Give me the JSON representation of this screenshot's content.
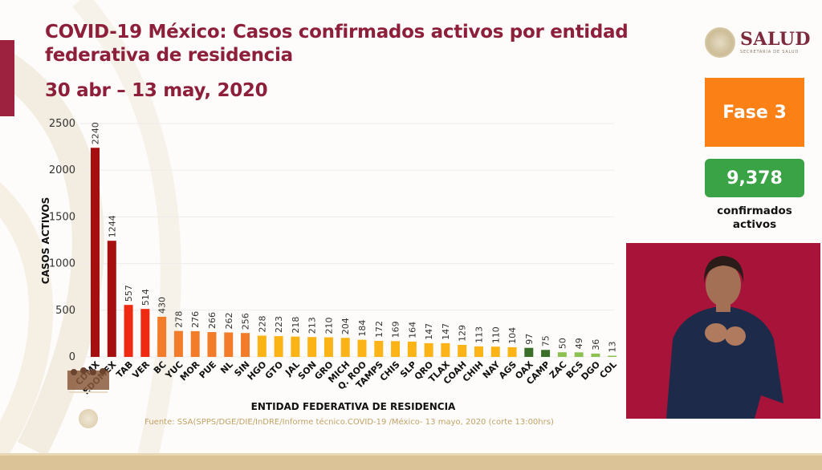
{
  "header": {
    "title": "COVID-19 México: Casos confirmados activos por entidad federativa de residencia",
    "date_range": "30 abr – 13 may, 2020"
  },
  "logo": {
    "name": "SALUD",
    "subtitle": "SECRETARÍA DE SALUD"
  },
  "sidebar": {
    "phase_label": "Fase 3",
    "phase_color": "#fb8117",
    "active_count": "9,378",
    "active_color": "#3aa346",
    "active_label_line1": "confirmados",
    "active_label_line2": "activos"
  },
  "video": {
    "description": "Sign language interpreter"
  },
  "source": "Fuente: SSA(SPPS/DGE/DIE/InDRE/Informe técnico.COVID-19 /México- 13 mayo, 2020 (corte 13:00hrs)",
  "chart_data": {
    "type": "bar",
    "title": "COVID-19 México: Casos confirmados activos por entidad federativa de residencia",
    "subtitle": "30 abr – 13 may, 2020",
    "xlabel": "ENTIDAD FEDERATIVA DE  RESIDENCIA",
    "ylabel": "CASOS ACTIVOS",
    "ylim": [
      0,
      2500
    ],
    "yticks": [
      0,
      500,
      1000,
      1500,
      2000,
      2500
    ],
    "grid": true,
    "categories": [
      "CDMX",
      "EDOMEX",
      "TAB",
      "VER",
      "BC",
      "YUC",
      "MOR",
      "PUE",
      "NL",
      "SIN",
      "HGO",
      "GTO",
      "JAL",
      "SON",
      "GRO",
      "MICH",
      "Q. ROO",
      "TAMPS",
      "CHIS",
      "SLP",
      "QRO",
      "TLAX",
      "COAH",
      "CHIH",
      "NAY",
      "AGS",
      "OAX",
      "CAMP",
      "ZAC",
      "BCS",
      "DGO",
      "COL"
    ],
    "values": [
      2240,
      1244,
      557,
      514,
      430,
      278,
      276,
      266,
      262,
      256,
      228,
      223,
      218,
      213,
      210,
      204,
      184,
      172,
      169,
      164,
      147,
      147,
      129,
      113,
      110,
      104,
      97,
      75,
      50,
      49,
      36,
      13
    ],
    "colors": [
      "#a50f0f",
      "#a50f0f",
      "#ee2a12",
      "#ee2a12",
      "#f27c2a",
      "#f27c2a",
      "#f27c2a",
      "#f27c2a",
      "#f27c2a",
      "#f27c2a",
      "#fbb316",
      "#fbb316",
      "#fbb316",
      "#fbb316",
      "#fbb316",
      "#fbb316",
      "#fbb316",
      "#fbb316",
      "#fbb316",
      "#fbb316",
      "#fbb316",
      "#fbb316",
      "#fbb316",
      "#fbb316",
      "#fbb316",
      "#fbb316",
      "#3b6e28",
      "#3b6e28",
      "#8cc152",
      "#8cc152",
      "#8cc152",
      "#8cc152"
    ]
  }
}
